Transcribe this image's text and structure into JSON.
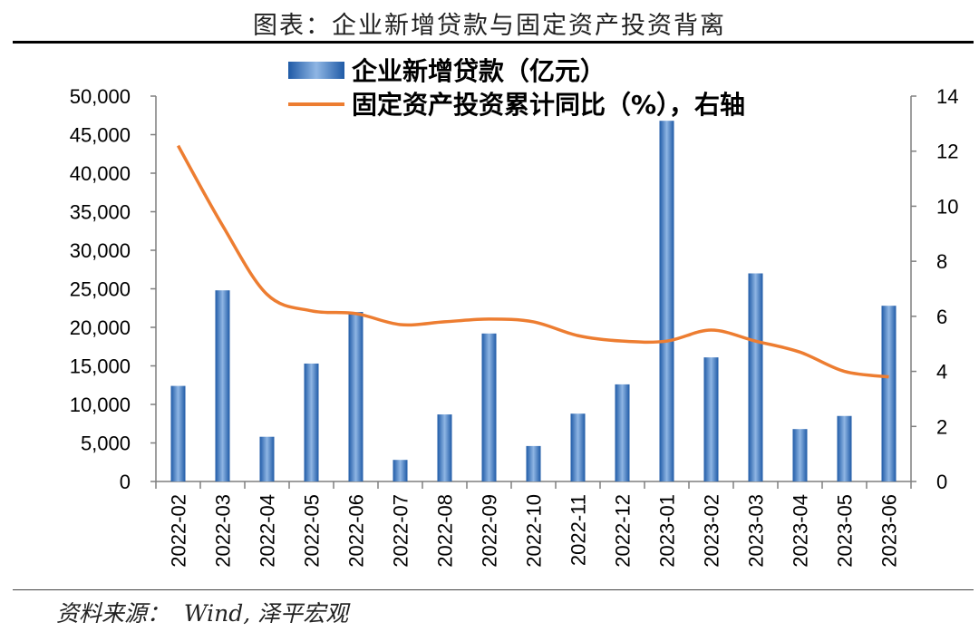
{
  "title": "图表：企业新增贷款与固定资产投资背离",
  "source": "资料来源：  Wind, 泽平宏观",
  "chart_data": {
    "type": "bar",
    "categories": [
      "2022-02",
      "2022-03",
      "2022-04",
      "2022-05",
      "2022-06",
      "2022-07",
      "2022-08",
      "2022-09",
      "2022-10",
      "2022-11",
      "2022-12",
      "2023-01",
      "2023-02",
      "2023-03",
      "2023-04",
      "2023-05",
      "2023-06"
    ],
    "series": [
      {
        "name": "企业新增贷款（亿元）",
        "type": "bar",
        "axis": "left",
        "color": "#3a78c0",
        "values": [
          12400,
          24800,
          5800,
          15300,
          22000,
          2800,
          8700,
          19200,
          4600,
          8800,
          12600,
          46800,
          16100,
          27000,
          6800,
          8500,
          22800
        ]
      },
      {
        "name": "固定资产投资累计同比（%），右轴",
        "type": "line",
        "axis": "right",
        "color": "#ed7d31",
        "values": [
          12.2,
          9.3,
          6.8,
          6.2,
          6.1,
          5.7,
          5.8,
          5.9,
          5.8,
          5.3,
          5.1,
          5.1,
          5.5,
          5.1,
          4.7,
          4.0,
          3.8
        ]
      }
    ],
    "y_left": {
      "min": 0,
      "max": 50000,
      "step": 5000,
      "tick_labels": [
        "0",
        "5,000",
        "10,000",
        "15,000",
        "20,000",
        "25,000",
        "30,000",
        "35,000",
        "40,000",
        "45,000",
        "50,000"
      ]
    },
    "y_right": {
      "min": 0,
      "max": 14,
      "step": 2,
      "tick_labels": [
        "0",
        "2",
        "4",
        "6",
        "8",
        "10",
        "12",
        "14"
      ]
    },
    "grid": false,
    "legend_position": "top-center"
  }
}
